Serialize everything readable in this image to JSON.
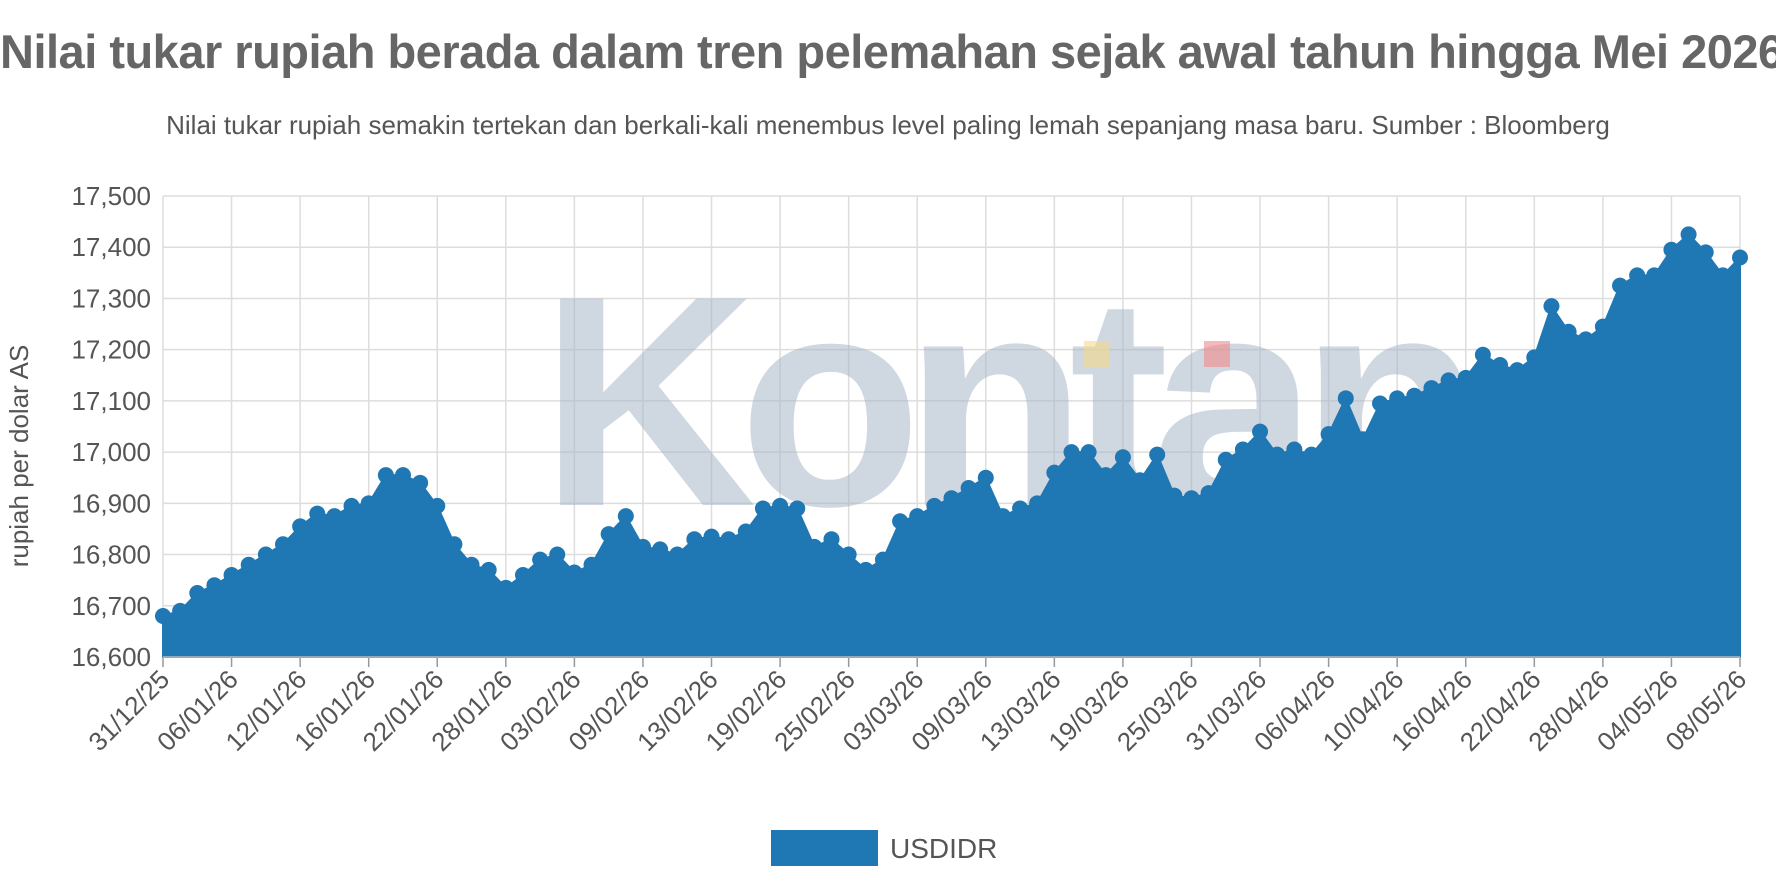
{
  "title": "Nilai tukar rupiah berada dalam tren pelemahan sejak awal tahun hingga Mei 2026",
  "subtitle": "Nilai tukar rupiah semakin tertekan dan berkali-kali menembus level paling lemah sepanjang masa baru. Sumber : Bloomberg",
  "watermark": "Kontan",
  "colors": {
    "series": "#1f77b4",
    "grid": "#dddddd",
    "text": "#555555"
  },
  "chart_data": {
    "type": "area",
    "ylabel": "rupiah per dolar AS",
    "ylim": [
      16600,
      17500
    ],
    "yticks": [
      16600,
      16700,
      16800,
      16900,
      17000,
      17100,
      17200,
      17300,
      17400,
      17500
    ],
    "ytick_labels": [
      "16,600",
      "16,700",
      "16,800",
      "16,900",
      "17,000",
      "17,100",
      "17,200",
      "17,300",
      "17,400",
      "17,500"
    ],
    "xtick_labels": [
      "31/12/25",
      "06/01/26",
      "12/01/26",
      "16/01/26",
      "22/01/26",
      "28/01/26",
      "03/02/26",
      "09/02/26",
      "13/02/26",
      "19/02/26",
      "25/02/26",
      "03/03/26",
      "09/03/26",
      "13/03/26",
      "19/03/26",
      "25/03/26",
      "31/03/26",
      "06/04/26",
      "10/04/26",
      "16/04/26",
      "22/04/26",
      "28/04/26",
      "04/05/26",
      "08/05/26"
    ],
    "grid": true,
    "legend_position": "bottom",
    "series": [
      {
        "name": "USDIDR",
        "values": [
          16680,
          16690,
          16725,
          16740,
          16760,
          16780,
          16800,
          16820,
          16855,
          16880,
          16875,
          16895,
          16900,
          16955,
          16955,
          16940,
          16895,
          16820,
          16780,
          16770,
          16735,
          16760,
          16790,
          16800,
          16765,
          16780,
          16840,
          16875,
          16815,
          16810,
          16800,
          16830,
          16835,
          16830,
          16845,
          16890,
          16895,
          16890,
          16815,
          16830,
          16800,
          16770,
          16790,
          16865,
          16875,
          16895,
          16910,
          16930,
          16950,
          16875,
          16890,
          16900,
          16960,
          17000,
          17000,
          16955,
          16990,
          16945,
          16995,
          16915,
          16910,
          16920,
          16985,
          17005,
          17040,
          16995,
          17005,
          16995,
          17035,
          17105,
          17025,
          17095,
          17105,
          17110,
          17125,
          17140,
          17145,
          17190,
          17170,
          17160,
          17185,
          17285,
          17235,
          17220,
          17245,
          17325,
          17345,
          17345,
          17395,
          17425,
          17390,
          17345,
          17380
        ]
      }
    ]
  }
}
